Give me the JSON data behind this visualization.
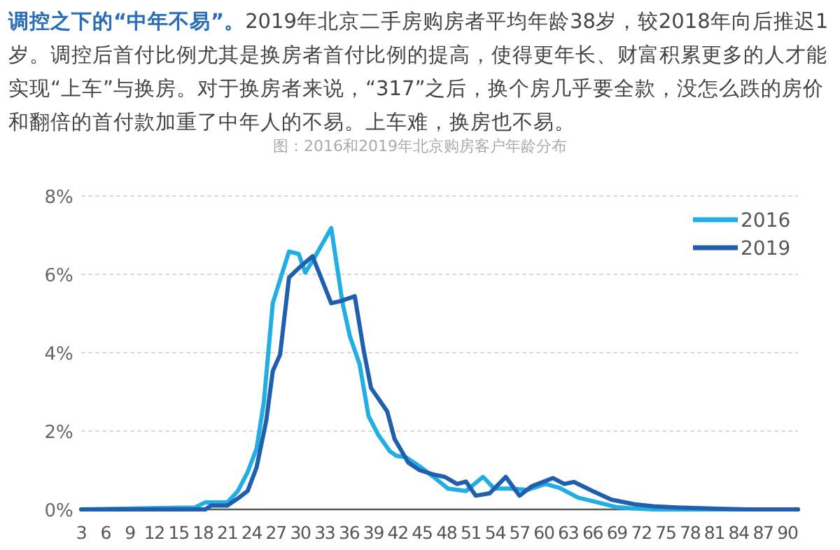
{
  "chart_data": {
    "type": "line",
    "title": "图：2016和2019年北京购房客户年龄分布",
    "annotations": [
      "**调控之下的“中年不易”。**2019年北京二手房购房者平均年龄38岁，较2018年向后推迟1岁。调控后首付比例尤其是换房者首付比例的提高，使得更年长、财富积累更多的人才能实现“上车”与换房。对于换房者来说，“317”之后，换个房几乎要全款，没怎么跌的房价和翻倍的首付款加重了中年人的不易。上车难，换房也不易。"
    ],
    "xlim": [
      3,
      91.3
    ],
    "xticks": [
      3,
      6,
      9,
      12,
      15,
      18,
      21,
      24,
      27,
      30,
      33,
      36,
      39,
      42,
      45,
      48,
      51,
      54,
      57,
      60,
      63,
      66,
      69,
      72,
      75,
      78,
      81,
      84,
      87,
      90
    ],
    "ylim": [
      0,
      8
    ],
    "yticks": [
      {
        "value": 0,
        "label": "0%"
      },
      {
        "value": 2,
        "label": "2%"
      },
      {
        "value": 4,
        "label": "4%"
      },
      {
        "value": 6,
        "label": "6%"
      },
      {
        "value": 8,
        "label": "8%"
      }
    ],
    "grid": "y",
    "legend": "top right",
    "line_style": "solid",
    "series": [
      {
        "name": "2016",
        "color": "#22aee3",
        "x": [
          3,
          17,
          18.3,
          21,
          22.3,
          23.5,
          24.6,
          25.5,
          26.6,
          27.5,
          28.6,
          29.8,
          30.6,
          31.5,
          33.8,
          35.2,
          36.1,
          37.3,
          38.4,
          39.6,
          41,
          41.8,
          43,
          44.7,
          46.4,
          48.2,
          50.4,
          52.5,
          53.9,
          55.7,
          58,
          60.2,
          61.9,
          64.2,
          66.6,
          68.9,
          70.6,
          73.5,
          91.3
        ],
        "values": [
          0,
          0.05,
          0.18,
          0.18,
          0.47,
          0.95,
          1.55,
          2.74,
          5.26,
          5.86,
          6.58,
          6.52,
          6.04,
          6.34,
          7.18,
          5.26,
          4.42,
          3.7,
          2.38,
          1.9,
          1.49,
          1.37,
          1.33,
          1.1,
          0.83,
          0.53,
          0.47,
          0.83,
          0.53,
          0.53,
          0.5,
          0.65,
          0.55,
          0.3,
          0.18,
          0.06,
          0.03,
          0,
          0
        ]
      },
      {
        "name": "2019",
        "color": "#1f5fae",
        "x": [
          3,
          18.3,
          19,
          21,
          22.3,
          23.5,
          24.6,
          25.8,
          26.6,
          27.5,
          28.6,
          29.8,
          31.5,
          33.8,
          35,
          36.7,
          37.8,
          38.7,
          40.7,
          41.6,
          43.3,
          44.7,
          46.4,
          47.8,
          49.3,
          50.4,
          51.6,
          53.3,
          55.3,
          57,
          58.5,
          61.1,
          62.5,
          63.7,
          66,
          68.3,
          71.2,
          73.5,
          76.4,
          79.3,
          85,
          91.3
        ],
        "values": [
          0,
          0,
          0.1,
          0.1,
          0.28,
          0.47,
          1.07,
          2.27,
          3.53,
          3.95,
          5.92,
          6.16,
          6.46,
          5.26,
          5.32,
          5.44,
          4.06,
          3.1,
          2.5,
          1.8,
          1.19,
          1.0,
          0.89,
          0.83,
          0.65,
          0.71,
          0.35,
          0.41,
          0.83,
          0.35,
          0.59,
          0.8,
          0.65,
          0.7,
          0.47,
          0.25,
          0.13,
          0.08,
          0.05,
          0.03,
          0,
          0
        ]
      }
    ]
  }
}
